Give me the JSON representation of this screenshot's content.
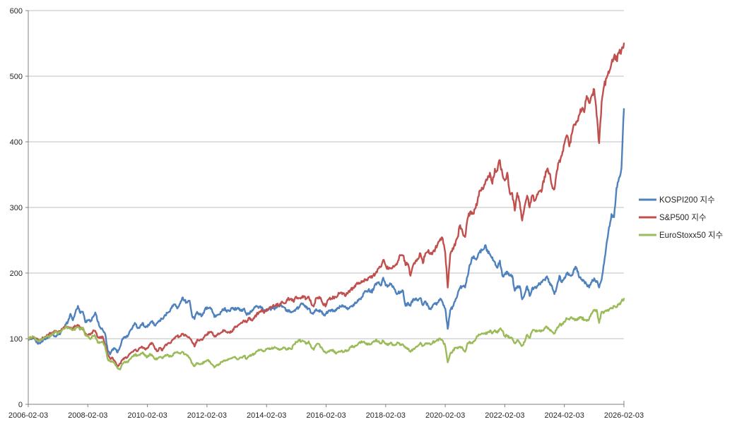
{
  "chart_data": {
    "type": "line",
    "title": "",
    "xlabel": "",
    "ylabel": "",
    "ylim": [
      0,
      600
    ],
    "y_ticks": [
      0,
      100,
      200,
      300,
      400,
      500,
      600
    ],
    "x_tick_labels": [
      "2006-02-03",
      "2008-02-03",
      "2010-02-03",
      "2012-02-03",
      "2014-02-03",
      "2016-02-03",
      "2018-02-03",
      "2020-02-03",
      "2022-02-03",
      "2024-02-03",
      "2026-02-03"
    ],
    "x_start": "2006-02-03",
    "x_end": "2026-02-03",
    "x_interval": "monthly",
    "grid": true,
    "legend_position": "right",
    "background": "#ffffff",
    "gridline_color": "#bfbfbf",
    "axis_color": "#808080",
    "label_color": "#262626",
    "series": [
      {
        "name": "KOSPI200 지수",
        "color": "#4F81BD",
        "values": [
          100,
          99,
          103,
          97,
          92,
          94,
          98,
          99,
          102,
          104,
          106,
          103,
          106,
          109,
          115,
          122,
          126,
          138,
          128,
          140,
          150,
          139,
          141,
          125,
          128,
          126,
          133,
          140,
          126,
          117,
          113,
          107,
          82,
          76,
          84,
          85,
          79,
          88,
          100,
          103,
          103,
          112,
          117,
          124,
          116,
          118,
          124,
          118,
          118,
          124,
          127,
          120,
          124,
          128,
          130,
          136,
          139,
          141,
          150,
          152,
          146,
          153,
          162,
          158,
          155,
          158,
          135,
          130,
          141,
          138,
          135,
          143,
          148,
          147,
          144,
          133,
          136,
          137,
          142,
          146,
          141,
          142,
          147,
          144,
          146,
          146,
          142,
          146,
          136,
          139,
          141,
          147,
          150,
          148,
          148,
          142,
          144,
          145,
          146,
          146,
          147,
          151,
          151,
          148,
          142,
          144,
          140,
          142,
          145,
          148,
          154,
          151,
          147,
          146,
          139,
          140,
          145,
          143,
          141,
          136,
          138,
          143,
          144,
          143,
          143,
          147,
          149,
          150,
          147,
          146,
          149,
          152,
          154,
          158,
          160,
          169,
          172,
          174,
          171,
          174,
          184,
          185,
          181,
          193,
          181,
          180,
          183,
          180,
          171,
          169,
          172,
          173,
          150,
          155,
          150,
          160,
          161,
          158,
          162,
          151,
          157,
          150,
          145,
          151,
          153,
          155,
          161,
          155,
          146,
          115,
          143,
          149,
          157,
          168,
          178,
          180,
          178,
          195,
          213,
          224,
          222,
          224,
          234,
          235,
          242,
          235,
          229,
          224,
          217,
          208,
          219,
          196,
          198,
          202,
          197,
          196,
          173,
          180,
          180,
          160,
          168,
          180,
          165,
          177,
          178,
          180,
          184,
          186,
          190,
          195,
          186,
          181,
          168,
          180,
          196,
          186,
          193,
          200,
          197,
          197,
          207,
          207,
          193,
          190,
          187,
          183,
          178,
          186,
          192,
          188,
          178,
          190,
          215,
          245,
          270,
          290,
          285,
          330,
          345,
          360,
          450
        ]
      },
      {
        "name": "S&P500 지수",
        "color": "#C0504D",
        "values": [
          100,
          101,
          102,
          99,
          99,
          99,
          101,
          103,
          106,
          108,
          110,
          112,
          110,
          111,
          116,
          119,
          118,
          115,
          116,
          119,
          121,
          116,
          115,
          108,
          106,
          106,
          111,
          112,
          102,
          101,
          103,
          91,
          76,
          70,
          71,
          65,
          57,
          62,
          68,
          71,
          72,
          77,
          80,
          83,
          81,
          86,
          87,
          84,
          86,
          91,
          93,
          85,
          81,
          86,
          82,
          89,
          92,
          93,
          98,
          100,
          104,
          103,
          107,
          105,
          103,
          101,
          95,
          88,
          98,
          97,
          98,
          103,
          107,
          110,
          109,
          103,
          106,
          107,
          110,
          113,
          110,
          110,
          111,
          117,
          118,
          122,
          124,
          127,
          125,
          132,
          128,
          131,
          137,
          141,
          144,
          139,
          145,
          146,
          147,
          150,
          153,
          150,
          156,
          154,
          157,
          161,
          161,
          156,
          164,
          162,
          163,
          165,
          161,
          164,
          154,
          149,
          162,
          162,
          160,
          151,
          151,
          160,
          161,
          163,
          163,
          170,
          170,
          169,
          166,
          172,
          175,
          177,
          183,
          184,
          185,
          188,
          189,
          193,
          193,
          196,
          200,
          207,
          209,
          220,
          212,
          206,
          207,
          211,
          212,
          219,
          227,
          227,
          212,
          214,
          196,
          211,
          218,
          221,
          230,
          215,
          230,
          233,
          229,
          232,
          237,
          245,
          252,
          252,
          231,
          178,
          228,
          238,
          242,
          255,
          273,
          262,
          255,
          283,
          293,
          290,
          298,
          310,
          326,
          328,
          335,
          343,
          353,
          336,
          359,
          356,
          372,
          352,
          341,
          353,
          322,
          322,
          295,
          322,
          308,
          280,
          302,
          318,
          300,
          318,
          310,
          320,
          325,
          327,
          347,
          358,
          352,
          334,
          328,
          356,
          372,
          379,
          397,
          410,
          393,
          412,
          426,
          430,
          441,
          449,
          445,
          470,
          459,
          470,
          480,
          440,
          398,
          460,
          485,
          497,
          505,
          520,
          530,
          525,
          535,
          540,
          550
        ]
      },
      {
        "name": "EuroStoxx50 지수",
        "color": "#9BBB59",
        "values": [
          100,
          102,
          103,
          98,
          96,
          97,
          100,
          102,
          104,
          104,
          108,
          110,
          108,
          110,
          115,
          118,
          117,
          115,
          113,
          115,
          118,
          114,
          117,
          105,
          104,
          99,
          104,
          104,
          94,
          94,
          95,
          87,
          69,
          66,
          65,
          61,
          55,
          53,
          62,
          65,
          64,
          69,
          73,
          76,
          74,
          75,
          79,
          74,
          72,
          77,
          74,
          69,
          69,
          72,
          70,
          74,
          76,
          73,
          74,
          79,
          80,
          78,
          80,
          76,
          74,
          71,
          62,
          58,
          63,
          61,
          62,
          65,
          67,
          66,
          61,
          56,
          60,
          61,
          65,
          67,
          67,
          69,
          70,
          72,
          69,
          70,
          71,
          74,
          69,
          73,
          75,
          77,
          81,
          82,
          83,
          81,
          84,
          84,
          85,
          86,
          86,
          83,
          84,
          86,
          83,
          86,
          84,
          91,
          95,
          98,
          96,
          96,
          92,
          96,
          87,
          83,
          90,
          92,
          87,
          81,
          78,
          81,
          82,
          82,
          77,
          80,
          81,
          80,
          82,
          82,
          88,
          88,
          89,
          93,
          95,
          95,
          92,
          92,
          92,
          95,
          98,
          96,
          93,
          97,
          92,
          90,
          94,
          91,
          91,
          94,
          90,
          91,
          86,
          85,
          80,
          84,
          87,
          89,
          94,
          89,
          93,
          92,
          91,
          95,
          96,
          98,
          100,
          97,
          89,
          64,
          77,
          81,
          86,
          85,
          88,
          85,
          80,
          93,
          95,
          93,
          97,
          104,
          106,
          108,
          108,
          109,
          112,
          108,
          113,
          109,
          115,
          112,
          104,
          105,
          101,
          101,
          93,
          98,
          94,
          89,
          95,
          106,
          101,
          111,
          113,
          111,
          113,
          112,
          116,
          118,
          114,
          111,
          108,
          116,
          121,
          122,
          126,
          131,
          129,
          132,
          130,
          128,
          131,
          132,
          129,
          127,
          130,
          138,
          143,
          144,
          124,
          141,
          140,
          142,
          144,
          146,
          150,
          148,
          152,
          157,
          161
        ]
      }
    ]
  }
}
